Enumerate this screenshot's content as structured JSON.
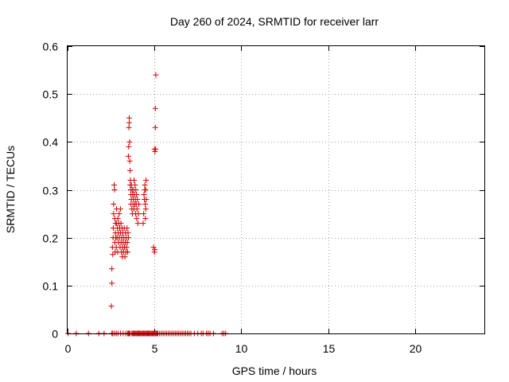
{
  "chart_data": {
    "type": "scatter",
    "title": "Day 260 of 2024, SRMTID for receiver larr",
    "xlabel": "GPS time / hours",
    "ylabel": "SRMTID / TECUs",
    "xlim": [
      0,
      24
    ],
    "ylim": [
      0,
      0.6
    ],
    "xticks": [
      0,
      5,
      10,
      15,
      20
    ],
    "yticks": [
      0,
      0.1,
      0.2,
      0.3,
      0.4,
      0.5,
      0.6
    ],
    "xtick_labels": [
      "0",
      "5",
      "10",
      "15",
      "20"
    ],
    "ytick_labels": [
      "0",
      "0.1",
      "0.2",
      "0.3",
      "0.4",
      "0.5",
      "0.6"
    ],
    "grid": true,
    "marker": "+",
    "marker_color": "#d40000",
    "series": [
      {
        "name": "SRMTID",
        "x": [
          0.02,
          0.5,
          1.2,
          1.8,
          2.1,
          2.55,
          2.6,
          2.7,
          2.8,
          2.9,
          3.05,
          3.2,
          3.35,
          3.45,
          3.5,
          3.55,
          3.6,
          3.7,
          3.75,
          3.8,
          3.85,
          3.9,
          3.95,
          4.0,
          4.05,
          4.1,
          4.15,
          4.2,
          4.25,
          4.3,
          4.35,
          4.4,
          4.45,
          4.5,
          4.55,
          4.6,
          4.65,
          4.7,
          4.75,
          4.8,
          4.85,
          4.9,
          4.95,
          5.0,
          5.05,
          5.1,
          5.15,
          5.2,
          5.3,
          5.4,
          5.5,
          5.6,
          5.7,
          5.8,
          5.9,
          6.0,
          6.1,
          6.2,
          6.3,
          6.4,
          6.5,
          6.6,
          6.7,
          6.8,
          6.9,
          7.0,
          7.1,
          7.3,
          7.5,
          7.7,
          7.8,
          8.0,
          8.1,
          8.2,
          8.4,
          8.9,
          9.0,
          9.1,
          2.52,
          2.55,
          2.55,
          2.58,
          2.6,
          2.62,
          2.63,
          2.65,
          2.65,
          2.68,
          2.7,
          2.72,
          2.72,
          2.74,
          2.75,
          2.76,
          2.78,
          2.8,
          2.82,
          2.82,
          2.85,
          2.87,
          2.88,
          2.9,
          2.92,
          2.93,
          2.95,
          2.97,
          2.98,
          3.0,
          3.02,
          3.04,
          3.05,
          3.07,
          3.08,
          3.1,
          3.12,
          3.13,
          3.15,
          3.17,
          3.18,
          3.2,
          3.22,
          3.24,
          3.26,
          3.28,
          3.3,
          3.32,
          3.34,
          3.36,
          3.38,
          3.4,
          3.42,
          3.44,
          3.46,
          3.48,
          3.5,
          3.5,
          3.52,
          3.53,
          3.55,
          3.55,
          3.57,
          3.58,
          3.6,
          3.6,
          3.62,
          3.63,
          3.65,
          3.65,
          3.67,
          3.68,
          3.7,
          3.72,
          3.73,
          3.75,
          3.77,
          3.78,
          3.8,
          3.82,
          3.83,
          3.85,
          3.87,
          3.88,
          3.9,
          3.92,
          3.93,
          3.95,
          3.97,
          3.98,
          4.0,
          4.02,
          4.05,
          4.08,
          4.1,
          4.35,
          4.38,
          4.4,
          4.42,
          4.44,
          4.45,
          4.47,
          4.48,
          4.5,
          4.5,
          4.52,
          4.53,
          4.95,
          5.0,
          5.0,
          5.02,
          5.03,
          5.05,
          5.05,
          5.07,
          5.08
        ],
        "y": [
          0,
          0,
          0,
          0,
          0,
          0,
          0,
          0,
          0,
          0,
          0,
          0,
          0,
          0,
          0,
          0,
          0,
          0,
          0,
          0,
          0,
          0,
          0,
          0,
          0,
          0,
          0,
          0,
          0,
          0,
          0,
          0,
          0,
          0,
          0,
          0,
          0,
          0,
          0,
          0,
          0,
          0,
          0,
          0,
          0,
          0,
          0,
          0,
          0,
          0,
          0,
          0,
          0,
          0,
          0,
          0,
          0,
          0,
          0,
          0,
          0,
          0,
          0,
          0,
          0,
          0,
          0,
          0,
          0,
          0,
          0,
          0,
          0,
          0,
          0,
          0,
          0,
          0,
          0.057,
          0.105,
          0.135,
          0.18,
          0.165,
          0.2,
          0.22,
          0.25,
          0.27,
          0.31,
          0.3,
          0.24,
          0.19,
          0.17,
          0.21,
          0.23,
          0.2,
          0.18,
          0.26,
          0.23,
          0.2,
          0.22,
          0.17,
          0.24,
          0.21,
          0.19,
          0.23,
          0.25,
          0.2,
          0.22,
          0.18,
          0.26,
          0.21,
          0.23,
          0.19,
          0.17,
          0.2,
          0.22,
          0.16,
          0.18,
          0.21,
          0.19,
          0.17,
          0.2,
          0.22,
          0.18,
          0.16,
          0.19,
          0.21,
          0.17,
          0.2,
          0.18,
          0.22,
          0.19,
          0.17,
          0.21,
          0.2,
          0.37,
          0.39,
          0.43,
          0.45,
          0.44,
          0.4,
          0.36,
          0.34,
          0.31,
          0.32,
          0.3,
          0.29,
          0.27,
          0.28,
          0.31,
          0.26,
          0.3,
          0.25,
          0.29,
          0.27,
          0.28,
          0.3,
          0.26,
          0.32,
          0.29,
          0.27,
          0.31,
          0.28,
          0.25,
          0.3,
          0.27,
          0.29,
          0.24,
          0.26,
          0.28,
          0.23,
          0.25,
          0.27,
          0.23,
          0.25,
          0.29,
          0.28,
          0.3,
          0.31,
          0.27,
          0.24,
          0.26,
          0.3,
          0.32,
          0.28,
          0.18,
          0.17,
          0.385,
          0.175,
          0.38,
          0.43,
          0.47,
          0.385,
          0.54
        ]
      }
    ]
  }
}
